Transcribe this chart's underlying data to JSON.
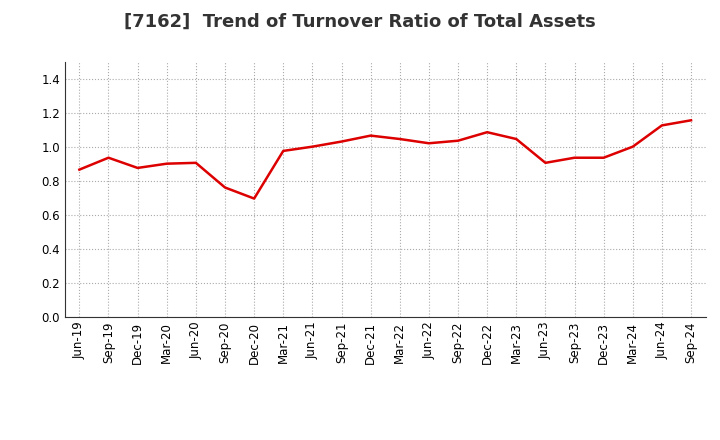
{
  "title": "[7162]  Trend of Turnover Ratio of Total Assets",
  "x_labels": [
    "Jun-19",
    "Sep-19",
    "Dec-19",
    "Mar-20",
    "Jun-20",
    "Sep-20",
    "Dec-20",
    "Mar-21",
    "Jun-21",
    "Sep-21",
    "Dec-21",
    "Mar-22",
    "Jun-22",
    "Sep-22",
    "Dec-22",
    "Mar-23",
    "Jun-23",
    "Sep-23",
    "Dec-23",
    "Mar-24",
    "Jun-24",
    "Sep-24"
  ],
  "y_values": [
    0.865,
    0.935,
    0.875,
    0.9,
    0.905,
    0.76,
    0.695,
    0.975,
    1.0,
    1.03,
    1.065,
    1.045,
    1.02,
    1.035,
    1.085,
    1.045,
    0.905,
    0.935,
    0.935,
    1.0,
    1.125,
    1.155
  ],
  "line_color": "#dd0000",
  "line_width": 1.8,
  "ylim": [
    0.0,
    1.5
  ],
  "yticks": [
    0.0,
    0.2,
    0.4,
    0.6,
    0.8,
    1.0,
    1.2,
    1.4
  ],
  "grid_color": "#aaaaaa",
  "grid_style": "dotted",
  "background_color": "#ffffff",
  "title_fontsize": 13,
  "tick_fontsize": 8.5
}
